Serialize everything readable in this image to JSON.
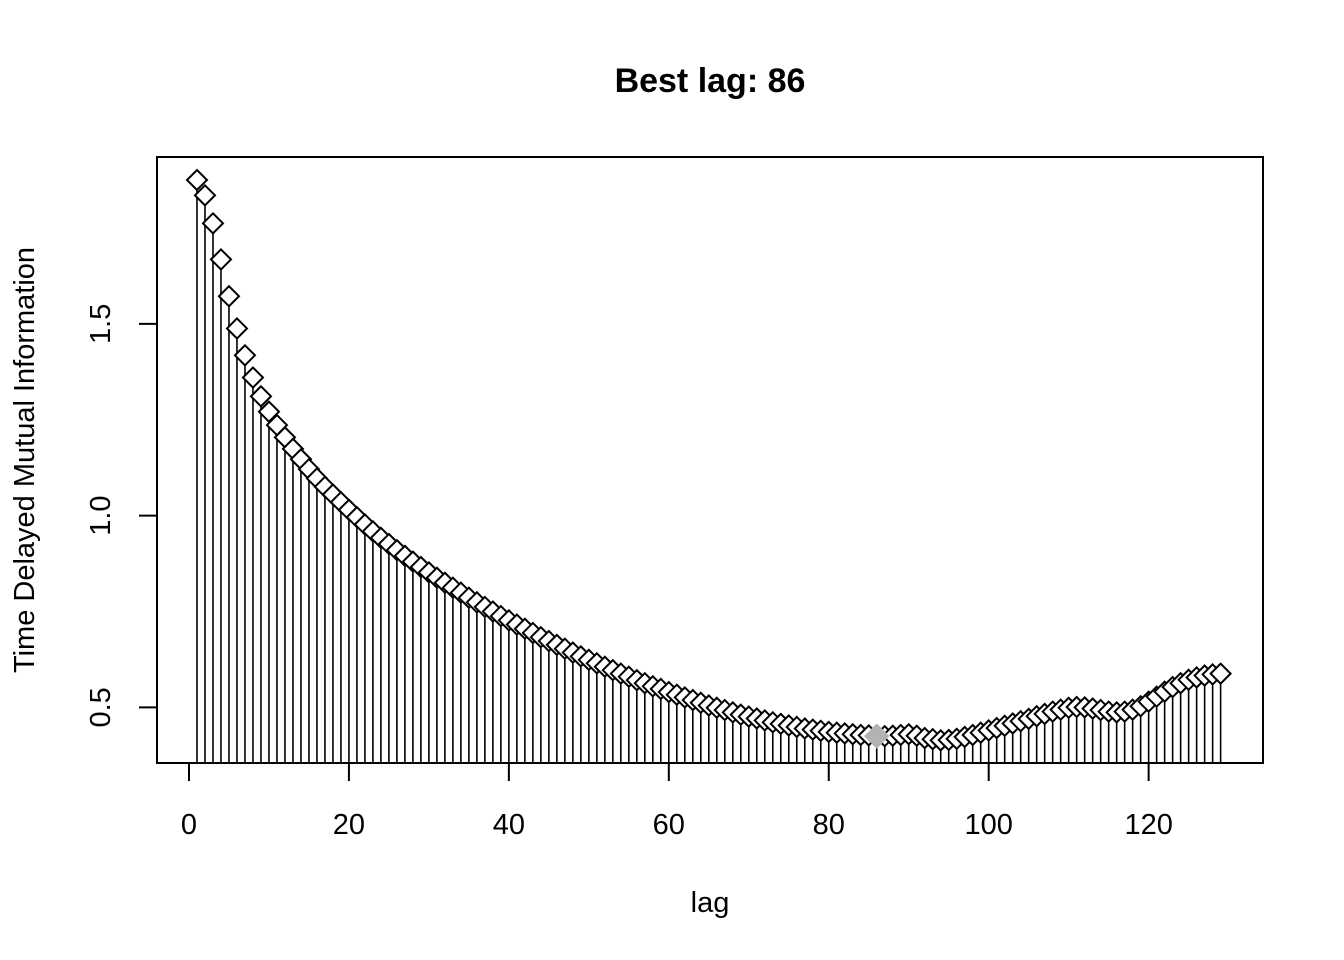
{
  "chart_data": {
    "type": "scatter",
    "title": "Best lag: 86",
    "xlabel": "lag",
    "ylabel": "Time Delayed Mutual Information",
    "xlim": [
      -4,
      134.3
    ],
    "ylim": [
      0.355,
      1.935
    ],
    "xticks": [
      "0",
      "20",
      "40",
      "60",
      "80",
      "100",
      "120"
    ],
    "xtick_values": [
      0,
      20,
      40,
      60,
      80,
      100,
      120
    ],
    "yticks": [
      "0.5",
      "1.0",
      "1.5"
    ],
    "ytick_values": [
      0.5,
      1.0,
      1.5
    ],
    "grid": false,
    "style": "vertical lines from baseline with open diamond markers",
    "highlight": {
      "x": 86,
      "y": 0.425,
      "color": "#b3b3b3"
    },
    "series": [
      {
        "marker": "diamond-open",
        "color": "#000000",
        "x": [
          1,
          2,
          3,
          4,
          5,
          6,
          7,
          8,
          9,
          10,
          11,
          12,
          13,
          14,
          15,
          16,
          17,
          18,
          19,
          20,
          21,
          22,
          23,
          24,
          25,
          26,
          27,
          28,
          29,
          30,
          31,
          32,
          33,
          34,
          35,
          36,
          37,
          38,
          39,
          40,
          41,
          42,
          43,
          44,
          45,
          46,
          47,
          48,
          49,
          50,
          51,
          52,
          53,
          54,
          55,
          56,
          57,
          58,
          59,
          60,
          61,
          62,
          63,
          64,
          65,
          66,
          67,
          68,
          69,
          70,
          71,
          72,
          73,
          74,
          75,
          76,
          77,
          78,
          79,
          80,
          81,
          82,
          83,
          84,
          85,
          86,
          87,
          88,
          89,
          90,
          91,
          92,
          93,
          94,
          95,
          96,
          97,
          98,
          99,
          100,
          101,
          102,
          103,
          104,
          105,
          106,
          107,
          108,
          109,
          110,
          111,
          112,
          113,
          114,
          115,
          116,
          117,
          118,
          119,
          120,
          121,
          122,
          123,
          124,
          125,
          126,
          127,
          128,
          129
        ],
        "y": [
          1.875,
          1.835,
          1.762,
          1.668,
          1.572,
          1.488,
          1.418,
          1.36,
          1.311,
          1.271,
          1.236,
          1.204,
          1.174,
          1.147,
          1.121,
          1.097,
          1.075,
          1.055,
          1.035,
          1.015,
          0.996,
          0.977,
          0.959,
          0.942,
          0.926,
          0.91,
          0.895,
          0.88,
          0.866,
          0.852,
          0.838,
          0.825,
          0.812,
          0.799,
          0.786,
          0.774,
          0.762,
          0.75,
          0.738,
          0.727,
          0.716,
          0.705,
          0.694,
          0.683,
          0.673,
          0.663,
          0.653,
          0.643,
          0.633,
          0.624,
          0.615,
          0.606,
          0.597,
          0.588,
          0.58,
          0.571,
          0.563,
          0.555,
          0.548,
          0.54,
          0.533,
          0.526,
          0.519,
          0.512,
          0.505,
          0.499,
          0.493,
          0.487,
          0.481,
          0.476,
          0.471,
          0.466,
          0.461,
          0.457,
          0.453,
          0.449,
          0.445,
          0.442,
          0.439,
          0.436,
          0.434,
          0.432,
          0.43,
          0.428,
          0.427,
          0.425,
          0.425,
          0.426,
          0.428,
          0.43,
          0.426,
          0.42,
          0.417,
          0.414,
          0.415,
          0.418,
          0.423,
          0.428,
          0.434,
          0.44,
          0.446,
          0.452,
          0.458,
          0.464,
          0.47,
          0.477,
          0.483,
          0.489,
          0.494,
          0.499,
          0.501,
          0.5,
          0.497,
          0.493,
          0.489,
          0.487,
          0.489,
          0.494,
          0.503,
          0.515,
          0.528,
          0.541,
          0.553,
          0.563,
          0.572,
          0.578,
          0.583,
          0.586,
          0.588
        ]
      }
    ]
  }
}
